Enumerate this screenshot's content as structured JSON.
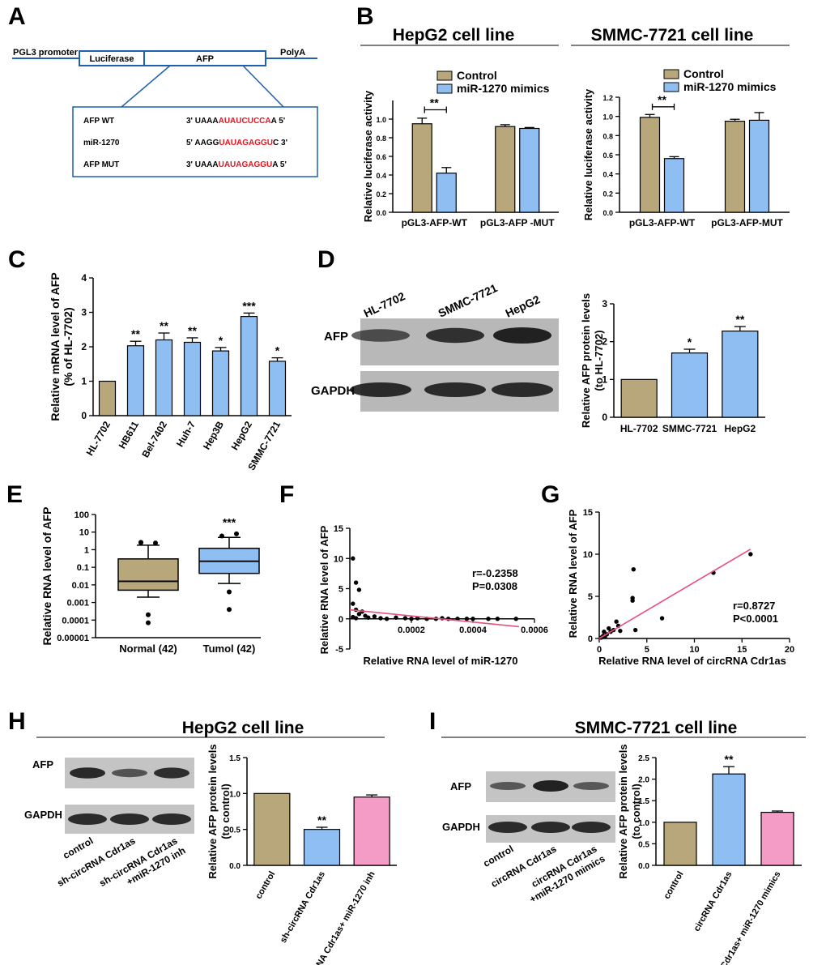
{
  "colors": {
    "control": "#b7a77a",
    "blue": "#8fbff2",
    "pink": "#f59cc6",
    "red": "#e8141f",
    "line": "#e8507c"
  },
  "panels": {
    "A": "A",
    "B": "B",
    "C": "C",
    "D": "D",
    "E": "E",
    "F": "F",
    "G": "G",
    "H": "H",
    "I": "I"
  },
  "panelA": {
    "promoter": "PGL3 promoter",
    "luciferase": "Luciferase",
    "afp": "AFP",
    "polya": "PolyA",
    "rows": [
      {
        "label": "AFP  WT",
        "pre": "3' UAAA",
        "mid": "AUAUCUCCA",
        "post": "A 5'"
      },
      {
        "label": "miR-1270",
        "pre": "5' AAGG",
        "mid": "UAUAGAGGU",
        "post": "C 3'"
      },
      {
        "label": "AFP  MUT",
        "pre": "3' UAAA",
        "mid": "UAUAGAGGU",
        "post": "A 5'"
      }
    ]
  },
  "chart_data": [
    {
      "panel": "B-left",
      "type": "bar",
      "title": "HepG2 cell line",
      "ylabel": "Relative luciferase activity",
      "ylim": [
        0,
        1.2
      ],
      "yticks": [
        "0.0",
        "0.2",
        "0.4",
        "0.6",
        "0.8",
        "1.0"
      ],
      "categories": [
        "pGL3-AFP-WT",
        "pGL3-AFP -MUT"
      ],
      "series": [
        {
          "name": "Control",
          "values": [
            0.95,
            0.92
          ],
          "errors": [
            0.06,
            0.02
          ]
        },
        {
          "name": "miR-1270 mimics",
          "values": [
            0.42,
            0.9
          ],
          "errors": [
            0.06,
            0.01
          ]
        }
      ],
      "annotation": "**"
    },
    {
      "panel": "B-right",
      "type": "bar",
      "title": "SMMC-7721 cell line",
      "ylabel": "Relative luciferase activity",
      "ylim": [
        0,
        1.2
      ],
      "yticks": [
        "0.0",
        "0.2",
        "0.4",
        "0.6",
        "0.8",
        "1.0",
        "1.2"
      ],
      "categories": [
        "pGL3-AFP-WT",
        "pGL3-AFP-MUT"
      ],
      "series": [
        {
          "name": "Control",
          "values": [
            0.99,
            0.95
          ],
          "errors": [
            0.03,
            0.02
          ]
        },
        {
          "name": "miR-1270 mimics",
          "values": [
            0.56,
            0.96
          ],
          "errors": [
            0.02,
            0.08
          ]
        }
      ],
      "annotation": "**"
    },
    {
      "panel": "C",
      "type": "bar",
      "ylabel": "Relative mRNA level of AFP",
      "ylabel2": "(% of HL-7702)",
      "ylim": [
        0,
        4
      ],
      "yticks": [
        "0",
        "1",
        "2",
        "3",
        "4"
      ],
      "categories": [
        "HL-7702",
        "HB611",
        "Bel-7402",
        "Huh-7",
        "Hep3B",
        "HepG2",
        "SMMC-7721"
      ],
      "values": [
        1,
        2.03,
        2.2,
        2.13,
        1.88,
        2.88,
        1.58
      ],
      "errors": [
        0,
        0.13,
        0.2,
        0.13,
        0.1,
        0.1,
        0.1
      ],
      "significance": [
        "",
        "**",
        "**",
        "**",
        "*",
        "***",
        "*"
      ]
    },
    {
      "panel": "D",
      "type": "bar",
      "ylabel": "Relative AFP protein levels",
      "ylabel2": "(to HL-7702)",
      "ylim": [
        0,
        3
      ],
      "yticks": [
        "0",
        "1",
        "2",
        "3"
      ],
      "categories": [
        "HL-7702",
        "SMMC-7721",
        "HepG2"
      ],
      "values": [
        1,
        1.7,
        2.28
      ],
      "errors": [
        0,
        0.1,
        0.12
      ],
      "significance": [
        "",
        "*",
        "**"
      ]
    },
    {
      "panel": "E",
      "type": "box",
      "ylabel": "Relative RNA level of AFP",
      "scale": "log",
      "yticks": [
        "100",
        "10",
        "1",
        "0.1",
        "0.01",
        "0.001",
        "0.0001",
        "0.00001"
      ],
      "categories": [
        "Normal (42)",
        "Tumol (42)"
      ],
      "boxes": [
        {
          "whisker_low": 0.002,
          "q1": 0.005,
          "median": 0.016,
          "q3": 0.3,
          "whisker_high": 1.8,
          "outliers": [
            0.0002,
            7e-05,
            2.5,
            2.4,
            2.6
          ]
        },
        {
          "whisker_low": 0.012,
          "q1": 0.045,
          "median": 0.22,
          "q3": 1.2,
          "whisker_high": 5,
          "outliers": [
            0.004,
            0.0004,
            6,
            8
          ]
        }
      ],
      "significance": [
        "",
        "***"
      ]
    },
    {
      "panel": "F",
      "type": "scatter",
      "xlabel": "Relative RNA level of miR-1270",
      "ylabel": "Relative RNA level of AFP",
      "xlim": [
        0,
        0.0006
      ],
      "ylim": [
        -5,
        15
      ],
      "xticks": [
        "0.0002",
        "0.0004",
        "0.0006"
      ],
      "yticks": [
        "-5",
        "0",
        "5",
        "10",
        "15"
      ],
      "points": [
        [
          1e-05,
          10
        ],
        [
          2e-05,
          6
        ],
        [
          3e-05,
          4.8
        ],
        [
          1e-05,
          2.5
        ],
        [
          2e-05,
          1.5
        ],
        [
          4e-05,
          1.2
        ],
        [
          3e-05,
          0.8
        ],
        [
          5e-05,
          0.5
        ],
        [
          1e-05,
          0.3
        ],
        [
          2e-05,
          0.1
        ],
        [
          6e-05,
          0.2
        ],
        [
          8e-05,
          0.4
        ],
        [
          0.0001,
          0.1
        ],
        [
          0.00012,
          0
        ],
        [
          0.00015,
          0.2
        ],
        [
          0.00018,
          0.1
        ],
        [
          0.0002,
          0
        ],
        [
          0.00022,
          0.1
        ],
        [
          0.00025,
          0
        ],
        [
          0.00028,
          0
        ],
        [
          0.0003,
          0.1
        ],
        [
          0.00032,
          0
        ],
        [
          0.00035,
          0
        ],
        [
          0.00038,
          0
        ],
        [
          0.0004,
          0
        ],
        [
          0.00045,
          0
        ],
        [
          0.00048,
          0
        ],
        [
          0.00054,
          0
        ]
      ],
      "fit": [
        [
          0,
          1.5
        ],
        [
          0.00055,
          -1.3
        ]
      ],
      "annotation": [
        "r=-0.2358",
        "P=0.0308"
      ]
    },
    {
      "panel": "G",
      "type": "scatter",
      "xlabel": "Relative RNA level of circRNA Cdr1as",
      "ylabel": "Relative RNA level of AFP",
      "xlim": [
        0,
        20
      ],
      "ylim": [
        0,
        15
      ],
      "xticks": [
        "0",
        "5",
        "10",
        "15",
        "20"
      ],
      "yticks": [
        "0",
        "5",
        "10",
        "15"
      ],
      "points": [
        [
          0.2,
          0.1
        ],
        [
          0.4,
          0.3
        ],
        [
          0.5,
          0.8
        ],
        [
          0.6,
          0.2
        ],
        [
          0.8,
          0.5
        ],
        [
          1.0,
          1.2
        ],
        [
          1.2,
          0.8
        ],
        [
          1.5,
          1.0
        ],
        [
          1.8,
          2.0
        ],
        [
          2.0,
          1.5
        ],
        [
          2.2,
          0.9
        ],
        [
          3.5,
          4.8
        ],
        [
          3.5,
          4.5
        ],
        [
          3.6,
          8.2
        ],
        [
          3.8,
          1.0
        ],
        [
          6.6,
          2.4
        ],
        [
          12.0,
          7.8
        ],
        [
          15.9,
          10.0
        ]
      ],
      "fit": [
        [
          0,
          0
        ],
        [
          15.9,
          10.6
        ]
      ],
      "annotation": [
        "r=0.8727",
        "P<0.0001"
      ]
    },
    {
      "panel": "H",
      "type": "bar",
      "title": "HepG2 cell line",
      "ylabel": "Relative AFP protein levels",
      "ylabel2": "(to control)",
      "ylim": [
        0,
        1.5
      ],
      "yticks": [
        "0.0",
        "0.5",
        "1.0",
        "1.5"
      ],
      "categories": [
        "control",
        "sh-circRNA Cdr1as",
        "sh-circRNA Cdr1as+ miR-1270 inh"
      ],
      "values": [
        1.0,
        0.5,
        0.95
      ],
      "errors": [
        0,
        0.03,
        0.03
      ],
      "significance": [
        "",
        "**",
        ""
      ]
    },
    {
      "panel": "I",
      "type": "bar",
      "title": "SMMC-7721 cell line",
      "ylabel": "Relative AFP protein levels",
      "ylabel2": "(to control)",
      "ylim": [
        0,
        2.5
      ],
      "yticks": [
        "0.0",
        "0.5",
        "1.0",
        "1.5",
        "2.0",
        "2.5"
      ],
      "categories": [
        "control",
        "circRNA Cdr1as",
        "circRNA Cdr1as+ miR-1270 mimics"
      ],
      "values": [
        1.0,
        2.12,
        1.23
      ],
      "errors": [
        0,
        0.17,
        0.03
      ],
      "significance": [
        "",
        "**",
        ""
      ]
    }
  ],
  "blots": {
    "D": {
      "lanes": [
        "HL-7702",
        "SMMC-7721",
        "HepG2"
      ],
      "rows": [
        "AFP",
        "GAPDH"
      ],
      "afp_intensity": [
        0.55,
        0.85,
        1.0
      ]
    },
    "H": {
      "lanes": [
        "control",
        "sh-circRNA Cdr1as",
        "sh-circRNA Cdr1as +miR-1270 inh"
      ],
      "rows": [
        "AFP",
        "GAPDH"
      ],
      "afp_intensity": [
        0.95,
        0.55,
        0.9
      ]
    },
    "I": {
      "lanes": [
        "control",
        "circRNA Cdr1as",
        "circRNA Cdr1as +miR-1270 mimics"
      ],
      "rows": [
        "AFP",
        "GAPDH"
      ],
      "afp_intensity": [
        0.5,
        1.0,
        0.5
      ]
    }
  }
}
